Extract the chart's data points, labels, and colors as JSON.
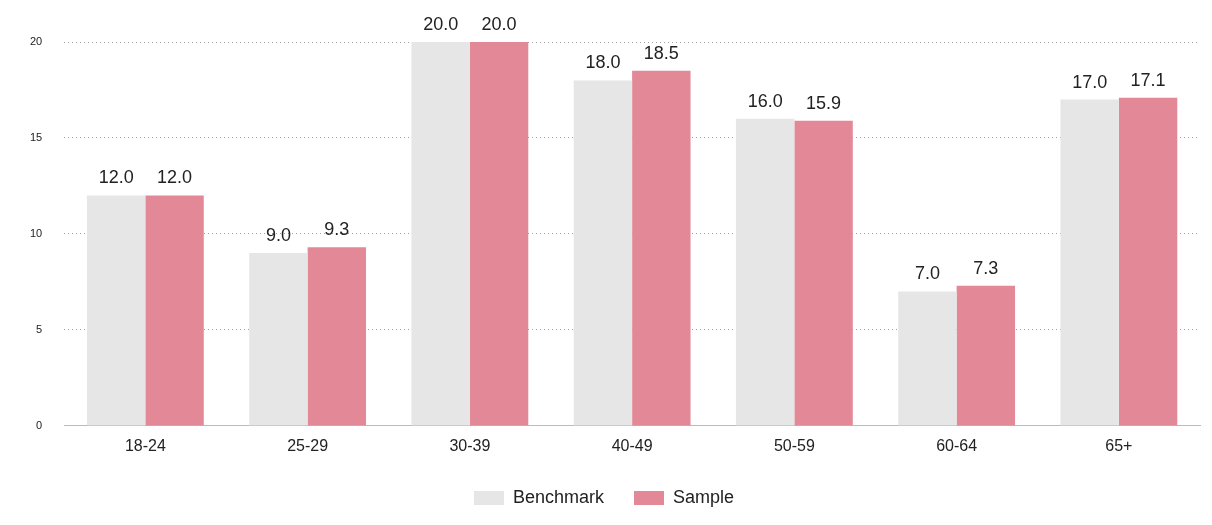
{
  "chart_data": {
    "type": "bar",
    "categories": [
      "18-24",
      "25-29",
      "30-39",
      "40-49",
      "50-59",
      "60-64",
      "65+"
    ],
    "series": [
      {
        "name": "Benchmark",
        "color": "#e6e6e6",
        "values": [
          12,
          9,
          20,
          18,
          16,
          7,
          17
        ],
        "value_labels": [
          "12.0",
          "9.0",
          "20.0",
          "18.0",
          "16.0",
          "7.0",
          "17.0"
        ]
      },
      {
        "name": "Sample",
        "color": "#e38896",
        "values": [
          12,
          9.3,
          20,
          18.5,
          15.9,
          7.3,
          17.1
        ],
        "value_labels": [
          "12.0",
          "9.3",
          "20.0",
          "18.5",
          "15.9",
          "7.3",
          "17.1"
        ]
      }
    ],
    "ylim": [
      0,
      20
    ],
    "yticks": [
      0,
      5,
      10,
      15,
      20
    ],
    "grid": "y",
    "legend": "bottom"
  }
}
